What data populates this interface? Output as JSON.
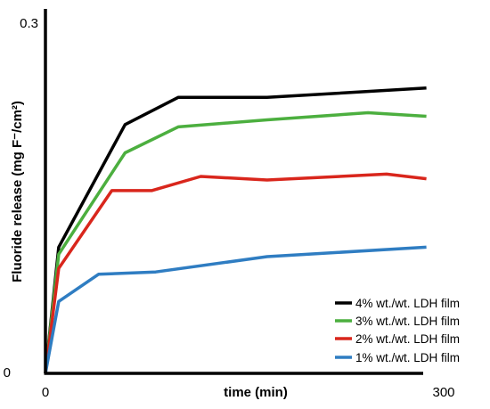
{
  "chart_data": {
    "type": "line",
    "xlabel": "time (min)",
    "ylabel": "Fluoride release (mg F⁻/cm²)",
    "xlim": [
      0,
      300
    ],
    "ylim": [
      0,
      0.3
    ],
    "x_tick_labels": [
      "0",
      "300"
    ],
    "y_tick_labels": [
      "0",
      "0.3"
    ],
    "grid": false,
    "legend_position": "bottom-right",
    "series": [
      {
        "name": "4% wt./wt. LDH film",
        "color": "#000000",
        "points": [
          [
            0,
            0
          ],
          [
            10,
            0.107
          ],
          [
            60,
            0.211
          ],
          [
            100,
            0.234
          ],
          [
            167,
            0.234
          ],
          [
            287,
            0.242
          ]
        ]
      },
      {
        "name": "3% wt./wt. LDH film",
        "color": "#4caf3f",
        "points": [
          [
            0,
            0
          ],
          [
            10,
            0.101
          ],
          [
            60,
            0.187
          ],
          [
            100,
            0.209
          ],
          [
            167,
            0.215
          ],
          [
            243,
            0.221
          ],
          [
            287,
            0.218
          ]
        ]
      },
      {
        "name": "2% wt./wt. LDH film",
        "color": "#d9261c",
        "points": [
          [
            0,
            0
          ],
          [
            10,
            0.089
          ],
          [
            50,
            0.155
          ],
          [
            80,
            0.155
          ],
          [
            117,
            0.167
          ],
          [
            167,
            0.164
          ],
          [
            257,
            0.169
          ],
          [
            287,
            0.165
          ]
        ]
      },
      {
        "name": "1% wt./wt. LDH film",
        "color": "#2f7dc2",
        "points": [
          [
            0,
            0
          ],
          [
            10,
            0.061
          ],
          [
            40,
            0.084
          ],
          [
            83,
            0.086
          ],
          [
            167,
            0.099
          ],
          [
            287,
            0.107
          ]
        ]
      }
    ]
  }
}
